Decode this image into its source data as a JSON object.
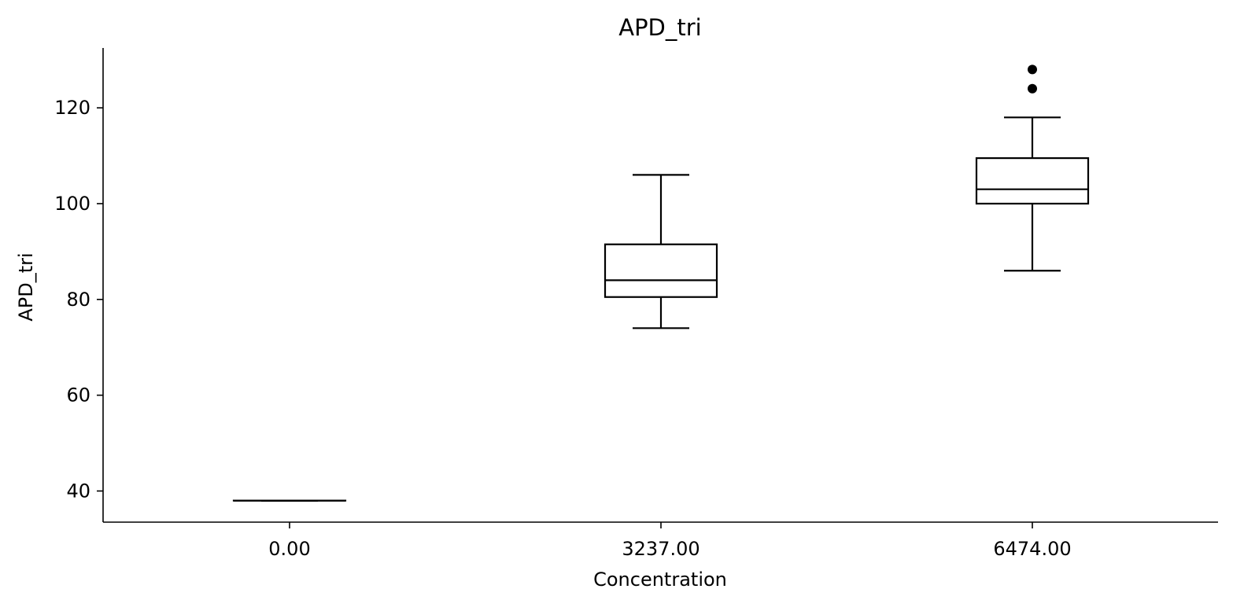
{
  "chart_data": {
    "type": "box",
    "title": "APD_tri",
    "xlabel": "Concentration",
    "ylabel": "APD_tri",
    "categories": [
      "0.00",
      "3237.00",
      "6474.00"
    ],
    "y_ticks": [
      40,
      60,
      80,
      100,
      120
    ],
    "ylim": [
      33.5,
      132.5
    ],
    "grid": false,
    "boxes": [
      {
        "category": "0.00",
        "whisker_low": 38,
        "q1": 38,
        "median": 38,
        "q3": 38,
        "whisker_high": 38,
        "outliers": []
      },
      {
        "category": "3237.00",
        "whisker_low": 74,
        "q1": 80.5,
        "median": 84,
        "q3": 91.5,
        "whisker_high": 106,
        "outliers": []
      },
      {
        "category": "6474.00",
        "whisker_low": 86,
        "q1": 100,
        "median": 103,
        "q3": 109.5,
        "whisker_high": 118,
        "outliers": [
          124,
          128
        ]
      }
    ],
    "colors": {
      "stroke": "#000000",
      "background": "#ffffff"
    }
  }
}
